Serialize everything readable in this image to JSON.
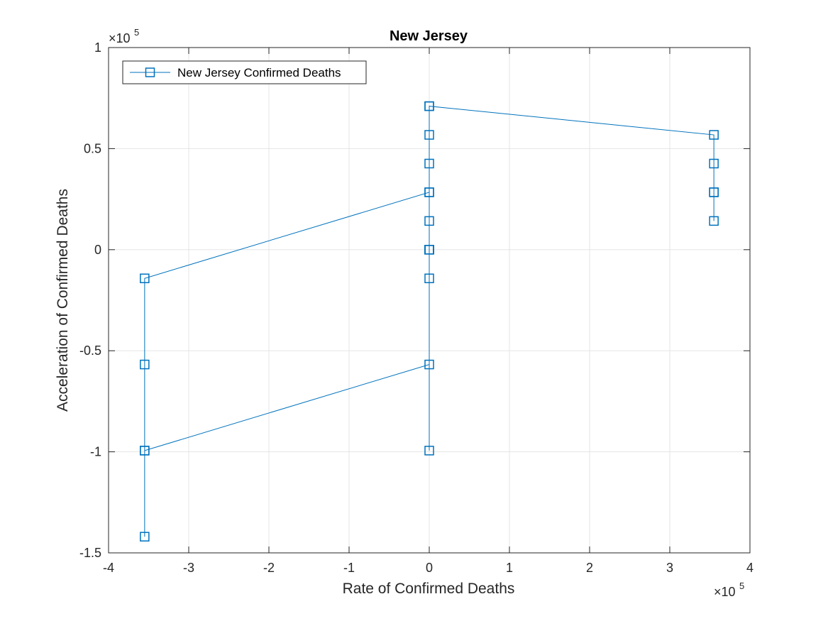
{
  "chart_data": {
    "type": "line",
    "title": "New Jersey",
    "xlabel": "Rate of Confirmed Deaths",
    "ylabel": "Acceleration of Confirmed Deaths",
    "x_multiplier": "×10",
    "x_multiplier_exp": "5",
    "y_multiplier": "×10",
    "y_multiplier_exp": "5",
    "xlim": [
      -400000,
      400000
    ],
    "ylim": [
      -150000,
      100000
    ],
    "x_ticks": [
      -4,
      -3,
      -2,
      -1,
      0,
      1,
      2,
      3,
      4
    ],
    "x_tick_labels": [
      "-4",
      "-3",
      "-2",
      "-1",
      "0",
      "1",
      "2",
      "3",
      "4"
    ],
    "y_ticks": [
      -1.5,
      -1,
      -0.5,
      0,
      0.5,
      1
    ],
    "y_tick_labels": [
      "-1.5",
      "-1",
      "-0.5",
      "0",
      "0.5",
      "1"
    ],
    "grid": true,
    "legend_position": "top-left",
    "color": "#0072BD",
    "series": [
      {
        "name": "New Jersey Confirmed Deaths",
        "marker": "square",
        "x": [
          0,
          0,
          0,
          0,
          0,
          0,
          0,
          0,
          0,
          0,
          0,
          0,
          -355000,
          -355000,
          -355000,
          -355000,
          -355000,
          0,
          0,
          0,
          355000,
          355000,
          355000,
          355000,
          355000
        ],
        "y": [
          0,
          0,
          0,
          0,
          14200,
          28400,
          42600,
          56800,
          71000,
          0,
          -14200,
          -56800,
          -99400,
          -142000,
          -99400,
          -56800,
          -14200,
          28400,
          -99400,
          71000,
          56800,
          42600,
          28400,
          14200,
          28400
        ]
      }
    ]
  }
}
